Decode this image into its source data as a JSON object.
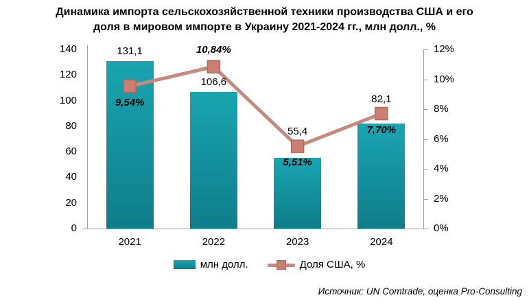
{
  "title": {
    "full": "Динамика импорта сельскохозяйственной техники производства США и его доля в мировом импорте в Украину 2021-2024 гг., млн долл., %",
    "lines": [
      "Динамика импорта сельскохозяйственной техники производства США и его",
      "доля в мировом импорте в Украину 2021-2024 гг., млн долл., %"
    ]
  },
  "source": "Источник: UN Comtrade, оценка Pro-Consulting",
  "chart_data": {
    "type": "bar",
    "subtype": "combo bar+line, dual axis",
    "categories": [
      "2021",
      "2022",
      "2023",
      "2024"
    ],
    "series": [
      {
        "name": "млн долл.",
        "type": "bar",
        "axis": "left",
        "values": [
          131.1,
          106.6,
          55.4,
          82.1
        ],
        "labels": [
          "131,1",
          "106,6",
          "55,4",
          "82,1"
        ]
      },
      {
        "name": "Доля США, %",
        "type": "line",
        "axis": "right",
        "values": [
          9.54,
          10.84,
          5.51,
          7.7
        ],
        "labels": [
          "9,54%",
          "10,84%",
          "5,51%",
          "7,70%"
        ]
      }
    ],
    "left_axis": {
      "min": 0,
      "max": 140,
      "step": 20,
      "labels": [
        "0",
        "20",
        "40",
        "60",
        "80",
        "100",
        "120",
        "140"
      ]
    },
    "right_axis": {
      "min": 0,
      "max": 12,
      "step": 2,
      "labels": [
        "0%",
        "2%",
        "4%",
        "6%",
        "8%",
        "10%",
        "12%"
      ]
    },
    "grid": false,
    "legend_position": "bottom"
  },
  "colors": {
    "bar_top": "#19a5b1",
    "bar_bottom": "#0f7d8a",
    "line": "#c6897d",
    "marker_fill": "#c97f72",
    "marker_border": "#b3695d",
    "axis": "#a0a0a0",
    "text": "#000000"
  }
}
